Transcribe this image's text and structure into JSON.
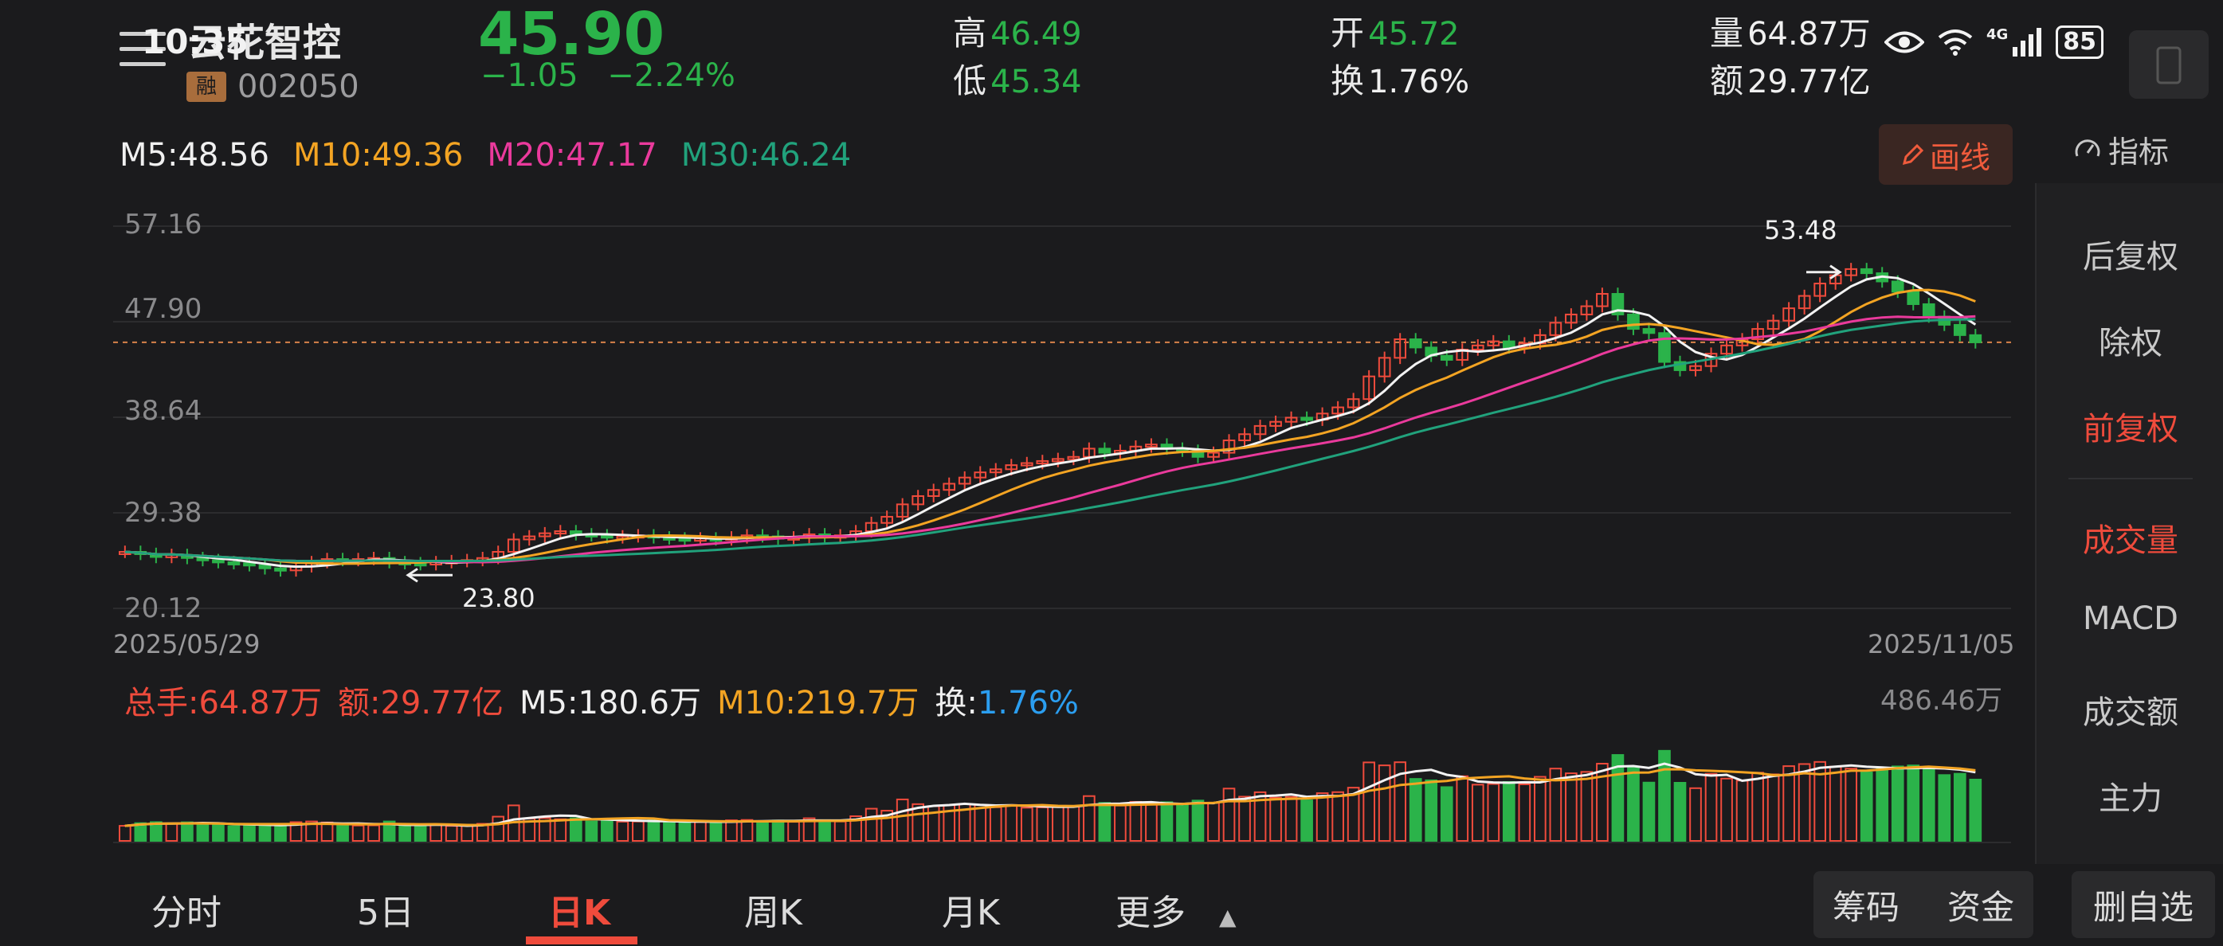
{
  "status": {
    "time": "10:35",
    "battery": "85",
    "network": "4G"
  },
  "stock": {
    "name": "云花智控",
    "badge": "融",
    "code": "002050",
    "price": "45.90",
    "change": "−1.05",
    "change_pct": "−2.24%"
  },
  "quote": {
    "high_label": "高",
    "high": "46.49",
    "low_label": "低",
    "low": "45.34",
    "open_label": "开",
    "open": "45.72",
    "turnover_label": "换",
    "turnover": "1.76%",
    "volume_label": "量",
    "volume": "64.87万",
    "amount_label": "额",
    "amount": "29.77亿"
  },
  "ma": {
    "m5": "M5:48.56",
    "m10": "M10:49.36",
    "m20": "M20:47.17",
    "m30": "M30:46.24"
  },
  "colors": {
    "up": "#ef4b3c",
    "down": "#2bb34a",
    "m5": "#f2f2f2",
    "m10": "#f3a423",
    "m20": "#ea3a9c",
    "m30": "#21a27c",
    "accent": "#ef4b3c"
  },
  "toolbar": {
    "draw_label": "画线",
    "indicator_label": "指标"
  },
  "sidebar": {
    "items": [
      {
        "label": "后复权",
        "active": false
      },
      {
        "label": "除权",
        "active": false
      },
      {
        "label": "前复权",
        "active": true
      },
      {
        "label": "成交量",
        "active": true
      },
      {
        "label": "MACD",
        "active": false
      },
      {
        "label": "成交额",
        "active": false
      },
      {
        "label": "主力",
        "active": false
      }
    ]
  },
  "chart": {
    "y_ticks": [
      "57.16",
      "47.90",
      "38.64",
      "29.38",
      "20.12"
    ],
    "start_date": "2025/05/29",
    "end_date": "2025/11/05",
    "high_marker": "53.48",
    "low_marker": "23.80"
  },
  "volume": {
    "total": "总手:64.87万",
    "amount": "额:29.77亿",
    "m5": "M5:180.6万",
    "m10": "M10:219.7万",
    "turnover_label": "换:",
    "turnover": "1.76%",
    "max": "486.46万"
  },
  "tabs": [
    {
      "label": "分时",
      "active": false
    },
    {
      "label": "5日",
      "active": false
    },
    {
      "label": "日K",
      "active": true
    },
    {
      "label": "周K",
      "active": false
    },
    {
      "label": "月K",
      "active": false
    },
    {
      "label": "更多",
      "active": false
    }
  ],
  "bottom_buttons": {
    "chips": "筹码",
    "funds": "资金",
    "remove": "删自选"
  },
  "chart_data": {
    "type": "candlestick",
    "title": "",
    "x_range": [
      "2025/05/29",
      "2025/11/05"
    ],
    "ylim": [
      20.12,
      57.16
    ],
    "y_ticks": [
      57.16,
      47.9,
      38.64,
      29.38,
      20.12
    ],
    "period_high": 53.48,
    "period_low": 23.8,
    "last_close": 45.9,
    "ma": {
      "M5": 48.56,
      "M10": 49.36,
      "M20": 47.17,
      "M30": 46.24
    },
    "close_series": [
      25.6,
      25.4,
      25.1,
      25.3,
      25.0,
      24.8,
      24.6,
      24.5,
      24.3,
      24.0,
      23.8,
      24.2,
      24.6,
      24.9,
      24.8,
      24.9,
      25.0,
      24.6,
      24.5,
      24.4,
      24.6,
      24.7,
      24.8,
      25.0,
      25.6,
      26.8,
      27.1,
      27.4,
      27.6,
      27.3,
      27.2,
      27.0,
      27.1,
      27.2,
      27.0,
      26.9,
      26.8,
      26.9,
      26.8,
      27.0,
      27.2,
      27.1,
      26.9,
      27.0,
      27.3,
      27.1,
      27.2,
      27.6,
      28.4,
      29.0,
      30.2,
      31.0,
      31.6,
      32.2,
      32.8,
      33.3,
      33.6,
      34.0,
      34.2,
      34.4,
      34.6,
      34.8,
      35.6,
      35.2,
      35.4,
      35.8,
      36.0,
      35.6,
      35.4,
      34.8,
      35.2,
      36.4,
      37.0,
      37.8,
      38.2,
      38.6,
      38.4,
      39.0,
      39.6,
      40.4,
      42.6,
      44.4,
      46.2,
      45.4,
      44.6,
      44.2,
      45.2,
      45.6,
      46.0,
      45.4,
      45.8,
      46.6,
      47.8,
      48.6,
      49.4,
      50.6,
      48.6,
      47.2,
      46.8,
      44.0,
      43.2,
      43.6,
      44.8,
      45.6,
      46.2,
      47.2,
      48.0,
      49.2,
      50.4,
      51.6,
      52.4,
      53.0,
      52.6,
      51.8,
      50.8,
      49.6,
      48.4,
      47.6,
      46.6,
      45.9
    ],
    "volume_max": "486.46万",
    "volume_last": "64.87万"
  }
}
